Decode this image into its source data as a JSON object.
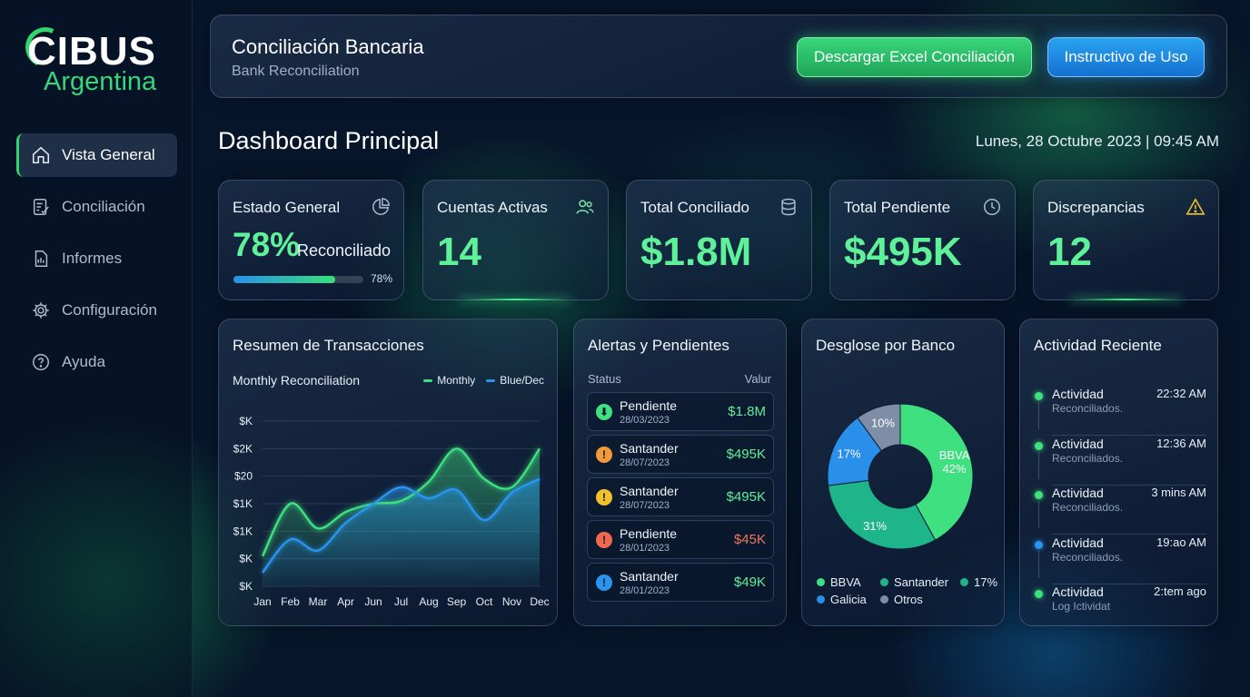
{
  "brand": {
    "name": "CIBUS",
    "sub": "Argentina"
  },
  "sidebar": {
    "items": [
      {
        "label": "Vista General",
        "icon": "home-icon",
        "active": true
      },
      {
        "label": "Conciliación",
        "icon": "checklist-icon"
      },
      {
        "label": "Informes",
        "icon": "report-icon"
      },
      {
        "label": "Configuración",
        "icon": "gear-icon"
      },
      {
        "label": "Ayuda",
        "icon": "help-icon"
      }
    ]
  },
  "header": {
    "title": "Conciliación Bancaria",
    "subtitle": "Bank Reconciliation",
    "excel_button": "Descargar Excel Conciliación",
    "instructions_button": "Instructivo de Uso"
  },
  "page": {
    "title": "Dashboard Principal",
    "datetime": "Lunes, 28 Octubre 2023 | 09:45 AM"
  },
  "kpis": {
    "estado": {
      "label": "Estado General",
      "value": "78%",
      "suffix": "Reconciliado",
      "progress": 0.78,
      "progress_text": "78%",
      "icon": "pie-chart-icon"
    },
    "cuentas": {
      "label": "Cuentas Activas",
      "value": "14",
      "icon": "users-icon"
    },
    "conciliado": {
      "label": "Total Conciliado",
      "value": "$1.8M",
      "icon": "database-icon"
    },
    "pendiente": {
      "label": "Total Pendiente",
      "value": "$495K",
      "icon": "clock-icon"
    },
    "discrepancias": {
      "label": "Discrepancias",
      "value": "12",
      "icon": "warning-icon"
    }
  },
  "transactions": {
    "title": "Resumen de Transacciones",
    "subtitle": "Monthly Reconciliation",
    "legend": [
      "Monthly",
      "Blue/Dec"
    ]
  },
  "chart_data": {
    "type": "area",
    "x": [
      "Jan",
      "Feb",
      "Mar",
      "Apr",
      "Jun",
      "Jul",
      "Aug",
      "Sep",
      "Oct",
      "Nov",
      "Dec"
    ],
    "y_tick_labels": [
      "$K",
      "$2K",
      "$20",
      "$1K",
      "$1K",
      "$K",
      "$K"
    ],
    "ylim": [
      0,
      6
    ],
    "series": [
      {
        "name": "Monthly",
        "color": "#3ee07f",
        "values": [
          1.1,
          3.0,
          2.1,
          2.7,
          3.0,
          3.1,
          3.8,
          5.0,
          3.9,
          3.6,
          5.0
        ]
      },
      {
        "name": "Blue/Dec",
        "color": "#2a95ee",
        "values": [
          0.5,
          1.7,
          1.3,
          2.3,
          3.0,
          3.6,
          3.2,
          3.5,
          2.4,
          3.4,
          3.9
        ]
      }
    ],
    "grid": true,
    "legend": "top-right"
  },
  "alerts": {
    "title": "Alertas y Pendientes",
    "col_status": "Status",
    "col_value": "Valur",
    "rows": [
      {
        "name": "Pendiente",
        "date": "28/03/2023",
        "value": "$1.8M",
        "icon": "download-icon",
        "glyph": "⬇",
        "icon_color": "#3ee07f",
        "value_color": "#5ff09a"
      },
      {
        "name": "Santander",
        "date": "28/07/2023",
        "value": "$495K",
        "icon": "warning-icon",
        "glyph": "!",
        "icon_color": "#f29a3a",
        "value_color": "#5ff09a"
      },
      {
        "name": "Santander",
        "date": "28/07/2023",
        "value": "$495K",
        "icon": "exclamation-icon",
        "glyph": "!",
        "icon_color": "#f1c12e",
        "value_color": "#5ff09a"
      },
      {
        "name": "Pendiente",
        "date": "28/01/2023",
        "value": "$45K",
        "icon": "error-icon",
        "glyph": "!",
        "icon_color": "#f0684f",
        "value_color": "#f0775c"
      },
      {
        "name": "Santander",
        "date": "28/01/2023",
        "value": "$49K",
        "icon": "info-icon",
        "glyph": "!",
        "icon_color": "#2a95ee",
        "value_color": "#5ff09a"
      }
    ]
  },
  "banks": {
    "title": "Desglose por Banco",
    "slices": [
      {
        "name": "BBVA",
        "value": 42,
        "label": "BBVA\n42%",
        "color": "#3ee07f"
      },
      {
        "name": "Santander",
        "value": 31,
        "label": "31%",
        "color": "#1fb58a"
      },
      {
        "name": "Galicia",
        "value": 17,
        "label": "17%",
        "color": "#2a8fe8"
      },
      {
        "name": "Otros",
        "value": 10,
        "label": "10%",
        "color": "#7d8ea6"
      }
    ],
    "legend": [
      {
        "label": "BBVA",
        "color": "#3ee07f"
      },
      {
        "label": "Santander",
        "color": "#1fb58a"
      },
      {
        "label": "17%",
        "color": "#1fb58a"
      },
      {
        "label": "Galicia",
        "color": "#2a8fe8"
      },
      {
        "label": "Otros",
        "color": "#7d8ea6"
      }
    ]
  },
  "activity": {
    "title": "Actividad Reciente",
    "items": [
      {
        "title": "Actividad",
        "sub": "Reconciliados.",
        "time": "22:32 AM",
        "color": "#3ee07f"
      },
      {
        "title": "Actividad",
        "sub": "Reconciliados.",
        "time": "12:36 AM",
        "color": "#3ee07f"
      },
      {
        "title": "Actividad",
        "sub": "Reconciliados.",
        "time": "3 mins AM",
        "color": "#3ee07f"
      },
      {
        "title": "Actividad",
        "sub": "Reconciliados.",
        "time": "19:ao AM",
        "color": "#2a95ee"
      },
      {
        "title": "Actividad",
        "sub": "Log Ictividat",
        "time": "2:tem ago",
        "color": "#3ee07f"
      }
    ]
  }
}
